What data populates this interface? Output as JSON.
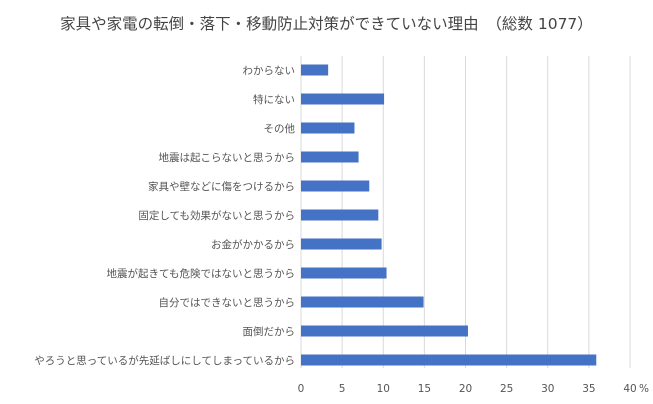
{
  "chart_data": {
    "type": "bar",
    "orientation": "horizontal",
    "title": "家具や家電の転倒・落下・移動防止対策ができていない理由　（総数 1077）",
    "categories": [
      "わからない",
      "特にない",
      "その他",
      "地震は起こらないと思うから",
      "家具や壁などに傷をつけるから",
      "固定しても効果がないと思うから",
      "お金がかかるから",
      "地震が起きても危険ではないと思うから",
      "自分ではできないと思うから",
      "面倒だから",
      "やろうと思っているが先延ばしにしてしまっているから"
    ],
    "values": [
      3.3,
      10.1,
      6.5,
      7.0,
      8.3,
      9.4,
      9.8,
      10.4,
      14.9,
      20.3,
      35.9
    ],
    "xlim": [
      0,
      40
    ],
    "xticks": [
      "0",
      "5",
      "10",
      "15",
      "20",
      "25",
      "30",
      "35",
      "40"
    ],
    "x_unit": "%",
    "bar_color": "#4472C4",
    "grid": "vertical",
    "legend": "none"
  }
}
